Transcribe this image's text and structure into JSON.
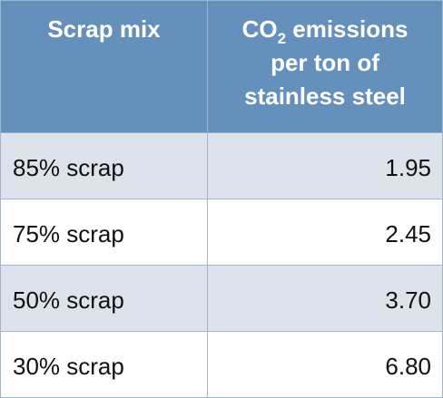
{
  "table": {
    "header": {
      "col1": "Scrap mix",
      "col2_line1_prefix": "CO",
      "col2_line1_sub": "2",
      "col2_line1_suffix": " emissions",
      "col2_line2": "per ton of",
      "col2_line3": "stainless steel"
    },
    "rows": [
      {
        "mix": "85% scrap",
        "value": "1.95"
      },
      {
        "mix": "75% scrap",
        "value": "2.45"
      },
      {
        "mix": "50% scrap",
        "value": "3.70"
      },
      {
        "mix": "30% scrap",
        "value": "6.80"
      }
    ],
    "colors": {
      "header_bg": "#6590bb",
      "header_text": "#ffffff",
      "row_shaded": "#dde3ea",
      "row_plain": "#ffffff",
      "border": "#9fb5cc"
    }
  }
}
